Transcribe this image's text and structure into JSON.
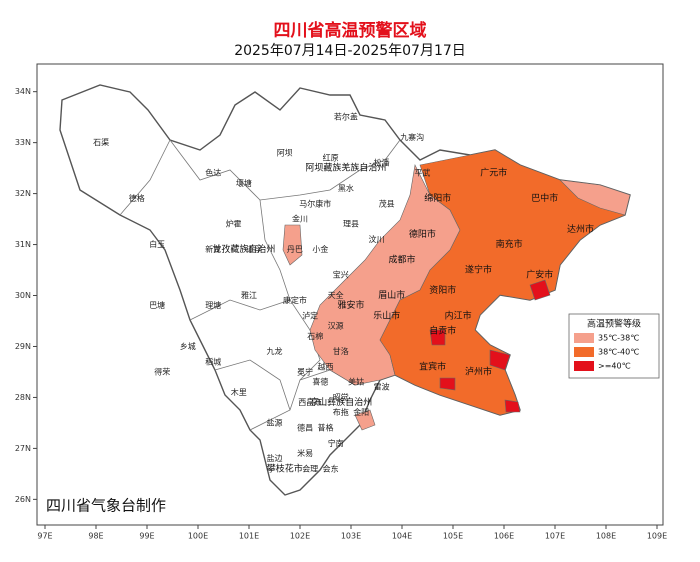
{
  "header": {
    "title": "四川省高温预警区域",
    "date_range": "2025年07月14日-2025年07月17日"
  },
  "axes": {
    "xlim": [
      97,
      109
    ],
    "xticks": [
      {
        "value": 97,
        "label": "97E"
      },
      {
        "value": 98,
        "label": "98E"
      },
      {
        "value": 99,
        "label": "99E"
      },
      {
        "value": 100,
        "label": "100E"
      },
      {
        "value": 101,
        "label": "101E"
      },
      {
        "value": 102,
        "label": "102E"
      },
      {
        "value": 103,
        "label": "103E"
      },
      {
        "value": 104,
        "label": "104E"
      },
      {
        "value": 105,
        "label": "105E"
      },
      {
        "value": 106,
        "label": "106E"
      },
      {
        "value": 107,
        "label": "107E"
      },
      {
        "value": 108,
        "label": "108E"
      },
      {
        "value": 109,
        "label": "109E"
      }
    ],
    "ylim": [
      25.85,
      34.7
    ],
    "yticks": [
      {
        "value": 26,
        "label": "26N"
      },
      {
        "value": 27,
        "label": "27N"
      },
      {
        "value": 28,
        "label": "28N"
      },
      {
        "value": 29,
        "label": "29N"
      },
      {
        "value": 30,
        "label": "30N"
      },
      {
        "value": 31,
        "label": "31N"
      },
      {
        "value": 32,
        "label": "32N"
      },
      {
        "value": 33,
        "label": "33N"
      },
      {
        "value": 34,
        "label": "34N"
      }
    ]
  },
  "legend": {
    "title": "高温预警等级",
    "items": [
      {
        "label": "35℃-38℃",
        "color": "#f5a08c"
      },
      {
        "label": "38℃-40℃",
        "color": "#f26b2a"
      },
      {
        "label": ">=40℃",
        "color": "#e3101b"
      }
    ]
  },
  "regions": [
    {
      "label": "甘孜藏族自治州",
      "lon": 100.9,
      "lat": 30.9
    },
    {
      "label": "阿坝藏族羌族自治州",
      "lon": 102.9,
      "lat": 32.5
    },
    {
      "label": "凉山彝族自治州",
      "lon": 102.8,
      "lat": 27.9
    },
    {
      "label": "成都市",
      "lon": 104.0,
      "lat": 30.7
    },
    {
      "label": "绵阳市",
      "lon": 104.7,
      "lat": 31.9
    },
    {
      "label": "广元市",
      "lon": 105.8,
      "lat": 32.4
    },
    {
      "label": "巴中市",
      "lon": 106.8,
      "lat": 31.9
    },
    {
      "label": "达州市",
      "lon": 107.5,
      "lat": 31.3
    },
    {
      "label": "南充市",
      "lon": 106.1,
      "lat": 31.0
    },
    {
      "label": "遂宁市",
      "lon": 105.5,
      "lat": 30.5
    },
    {
      "label": "广安市",
      "lon": 106.7,
      "lat": 30.4
    },
    {
      "label": "资阳市",
      "lon": 104.8,
      "lat": 30.1
    },
    {
      "label": "内江市",
      "lon": 105.1,
      "lat": 29.6
    },
    {
      "label": "自贡市",
      "lon": 104.8,
      "lat": 29.3
    },
    {
      "label": "宜宾市",
      "lon": 104.6,
      "lat": 28.6
    },
    {
      "label": "泸州市",
      "lon": 105.5,
      "lat": 28.5
    },
    {
      "label": "乐山市",
      "lon": 103.7,
      "lat": 29.6
    },
    {
      "label": "眉山市",
      "lon": 103.8,
      "lat": 30.0
    },
    {
      "label": "雅安市",
      "lon": 103.0,
      "lat": 29.8
    },
    {
      "label": "德阳市",
      "lon": 104.4,
      "lat": 31.2
    },
    {
      "label": "攀枝花市",
      "lon": 101.7,
      "lat": 26.6
    }
  ],
  "cities": [
    {
      "label": "石渠",
      "lon": 98.1,
      "lat": 33.0
    },
    {
      "label": "德格",
      "lon": 98.8,
      "lat": 31.9
    },
    {
      "label": "色达",
      "lon": 100.3,
      "lat": 32.4
    },
    {
      "label": "白玉",
      "lon": 99.2,
      "lat": 31.0
    },
    {
      "label": "巴塘",
      "lon": 99.2,
      "lat": 29.8
    },
    {
      "label": "理塘",
      "lon": 100.3,
      "lat": 29.8
    },
    {
      "label": "乡城",
      "lon": 99.8,
      "lat": 29.0
    },
    {
      "label": "稻城",
      "lon": 100.3,
      "lat": 28.7
    },
    {
      "label": "得荣",
      "lon": 99.3,
      "lat": 28.5
    },
    {
      "label": "木里",
      "lon": 100.8,
      "lat": 28.1
    },
    {
      "label": "九龙",
      "lon": 101.5,
      "lat": 28.9
    },
    {
      "label": "雅江",
      "lon": 101.0,
      "lat": 30.0
    },
    {
      "label": "新龙",
      "lon": 100.3,
      "lat": 30.9
    },
    {
      "label": "炉霍",
      "lon": 100.7,
      "lat": 31.4
    },
    {
      "label": "道孚",
      "lon": 101.1,
      "lat": 30.9
    },
    {
      "label": "康定市",
      "lon": 101.9,
      "lat": 29.9
    },
    {
      "label": "丹巴",
      "lon": 101.9,
      "lat": 30.9
    },
    {
      "label": "小金",
      "lon": 102.4,
      "lat": 30.9
    },
    {
      "label": "金川",
      "lon": 102.0,
      "lat": 31.5
    },
    {
      "label": "壤塘",
      "lon": 100.9,
      "lat": 32.2
    },
    {
      "label": "阿坝",
      "lon": 101.7,
      "lat": 32.8
    },
    {
      "label": "红原",
      "lon": 102.6,
      "lat": 32.7
    },
    {
      "label": "若尔盖",
      "lon": 102.9,
      "lat": 33.5
    },
    {
      "label": "马尔康市",
      "lon": 102.3,
      "lat": 31.8
    },
    {
      "label": "黑水",
      "lon": 102.9,
      "lat": 32.1
    },
    {
      "label": "松潘",
      "lon": 103.6,
      "lat": 32.6
    },
    {
      "label": "九寨沟",
      "lon": 104.2,
      "lat": 33.1
    },
    {
      "label": "茂县",
      "lon": 103.7,
      "lat": 31.8
    },
    {
      "label": "理县",
      "lon": 103.0,
      "lat": 31.4
    },
    {
      "label": "汶川",
      "lon": 103.5,
      "lat": 31.1
    },
    {
      "label": "平武",
      "lon": 104.4,
      "lat": 32.4
    },
    {
      "label": "宝兴",
      "lon": 102.8,
      "lat": 30.4
    },
    {
      "label": "天全",
      "lon": 102.7,
      "lat": 30.0
    },
    {
      "label": "泸定",
      "lon": 102.2,
      "lat": 29.6
    },
    {
      "label": "石棉",
      "lon": 102.3,
      "lat": 29.2
    },
    {
      "label": "汉源",
      "lon": 102.7,
      "lat": 29.4
    },
    {
      "label": "甘洛",
      "lon": 102.8,
      "lat": 28.9
    },
    {
      "label": "越西",
      "lon": 102.5,
      "lat": 28.6
    },
    {
      "label": "冕宁",
      "lon": 102.1,
      "lat": 28.5
    },
    {
      "label": "喜德",
      "lon": 102.4,
      "lat": 28.3
    },
    {
      "label": "美姑",
      "lon": 103.1,
      "lat": 28.3
    },
    {
      "label": "雷波",
      "lon": 103.6,
      "lat": 28.2
    },
    {
      "label": "昭觉",
      "lon": 102.8,
      "lat": 28.0
    },
    {
      "label": "西昌市",
      "lon": 102.2,
      "lat": 27.9
    },
    {
      "label": "金阳",
      "lon": 103.2,
      "lat": 27.7
    },
    {
      "label": "布拖",
      "lon": 102.8,
      "lat": 27.7
    },
    {
      "label": "普格",
      "lon": 102.5,
      "lat": 27.4
    },
    {
      "label": "德昌",
      "lon": 102.1,
      "lat": 27.4
    },
    {
      "label": "宁南",
      "lon": 102.7,
      "lat": 27.1
    },
    {
      "label": "盐源",
      "lon": 101.5,
      "lat": 27.5
    },
    {
      "label": "米易",
      "lon": 102.1,
      "lat": 26.9
    },
    {
      "label": "会理",
      "lon": 102.2,
      "lat": 26.6
    },
    {
      "label": "会东",
      "lon": 102.6,
      "lat": 26.6
    },
    {
      "label": "盐边",
      "lon": 101.5,
      "lat": 26.8
    }
  ],
  "credit": "四川省气象台制作"
}
